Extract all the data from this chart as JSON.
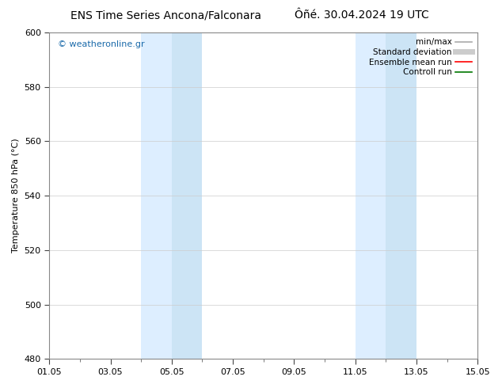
{
  "title_left": "ENS Time Series Ancona/Falconara",
  "title_right": "Ôñé. 30.04.2024 19 UTC",
  "ylabel": "Temperature 850 hPa (°C)",
  "ylim": [
    480,
    600
  ],
  "yticks": [
    480,
    500,
    520,
    540,
    560,
    580,
    600
  ],
  "xticks": [
    "01.05",
    "03.05",
    "05.05",
    "07.05",
    "09.05",
    "11.05",
    "13.05",
    "15.05"
  ],
  "xtick_positions": [
    0,
    2,
    4,
    6,
    8,
    10,
    12,
    14
  ],
  "shaded_bands": [
    {
      "x_start": 3.0,
      "x_end": 4.0
    },
    {
      "x_start": 4.0,
      "x_end": 5.0
    },
    {
      "x_start": 10.0,
      "x_end": 11.0
    },
    {
      "x_start": 11.0,
      "x_end": 12.0
    }
  ],
  "shade_color": "#ddeeff",
  "shade_color2": "#cce4f5",
  "background_color": "#ffffff",
  "plot_bg_color": "#ffffff",
  "watermark": "© weatheronline.gr",
  "watermark_color": "#1a6aaa",
  "legend_items": [
    {
      "label": "min/max",
      "color": "#aaaaaa",
      "lw": 1.2,
      "style": "-"
    },
    {
      "label": "Standard deviation",
      "color": "#cccccc",
      "lw": 5,
      "style": "-"
    },
    {
      "label": "Ensemble mean run",
      "color": "#ff0000",
      "lw": 1.2,
      "style": "-"
    },
    {
      "label": "Controll run",
      "color": "#007700",
      "lw": 1.2,
      "style": "-"
    }
  ],
  "title_fontsize": 10,
  "ylabel_fontsize": 8,
  "tick_fontsize": 8,
  "watermark_fontsize": 8,
  "legend_fontsize": 7.5,
  "grid_color": "#cccccc",
  "tick_color": "#444444",
  "spine_color": "#888888",
  "xlim": [
    0,
    14
  ]
}
